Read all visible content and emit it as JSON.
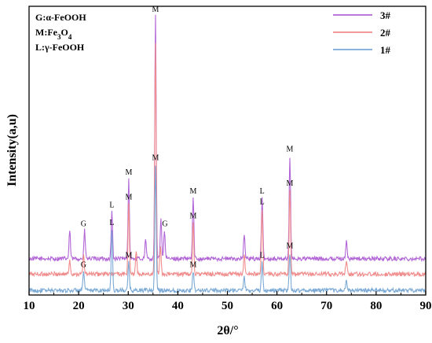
{
  "chart_data": {
    "type": "line",
    "xlabel": "2θ/°",
    "ylabel": "Intensity(a,u)",
    "xlim": [
      10,
      90
    ],
    "x_ticks": [
      "10",
      "20",
      "30",
      "40",
      "50",
      "60",
      "70",
      "80",
      "90"
    ],
    "y_ticks_shown": false,
    "grid": false,
    "legend": {
      "placement": "top-right",
      "entries": [
        {
          "label": "3#",
          "color": "#b265d6"
        },
        {
          "label": "2#",
          "color": "#f08c8c"
        },
        {
          "label": "1#",
          "color": "#7aa9d6"
        }
      ]
    },
    "phase_key": [
      {
        "code": "G:",
        "name": "α-FeOOH"
      },
      {
        "code": "M:",
        "name": "Fe3O4"
      },
      {
        "code": "L:",
        "name": "γ-FeOOH"
      }
    ],
    "series": [
      {
        "name": "3#",
        "color": "#b265d6",
        "baseline": 0.78,
        "peaks": [
          {
            "x": 18.2,
            "h": 0.6
          },
          {
            "x": 21.2,
            "h": 0.6
          },
          {
            "x": 26.7,
            "h": 1.0
          },
          {
            "x": 30.1,
            "h": 1.7
          },
          {
            "x": 33.5,
            "h": 0.4
          },
          {
            "x": 35.5,
            "h": 5.2
          },
          {
            "x": 36.6,
            "h": 0.9
          },
          {
            "x": 37.3,
            "h": 0.6
          },
          {
            "x": 43.1,
            "h": 1.3
          },
          {
            "x": 53.4,
            "h": 0.5
          },
          {
            "x": 57.0,
            "h": 1.3
          },
          {
            "x": 62.6,
            "h": 2.2
          },
          {
            "x": 74.0,
            "h": 0.4
          }
        ],
        "annotations": [
          {
            "x": 21.0,
            "label": "G"
          },
          {
            "x": 26.7,
            "label": "L"
          },
          {
            "x": 30.1,
            "label": "M"
          },
          {
            "x": 35.5,
            "label": "M"
          },
          {
            "x": 37.4,
            "label": "G"
          },
          {
            "x": 43.1,
            "label": "M"
          },
          {
            "x": 57.0,
            "label": "L"
          },
          {
            "x": 62.6,
            "label": "M"
          }
        ]
      },
      {
        "name": "2#",
        "color": "#f08c8c",
        "baseline": 0.45,
        "peaks": [
          {
            "x": 18.2,
            "h": 0.3
          },
          {
            "x": 21.0,
            "h": 0.4
          },
          {
            "x": 30.1,
            "h": 1.5
          },
          {
            "x": 31.6,
            "h": 0.5
          },
          {
            "x": 35.5,
            "h": 5.0
          },
          {
            "x": 36.5,
            "h": 0.6
          },
          {
            "x": 43.1,
            "h": 1.1
          },
          {
            "x": 53.4,
            "h": 0.4
          },
          {
            "x": 57.0,
            "h": 1.4
          },
          {
            "x": 62.6,
            "h": 1.8
          },
          {
            "x": 74.0,
            "h": 0.3
          }
        ],
        "annotations": [
          {
            "x": 30.1,
            "label": "M"
          },
          {
            "x": 43.1,
            "label": "M"
          },
          {
            "x": 57.0,
            "label": "L"
          },
          {
            "x": 62.6,
            "label": "M"
          }
        ]
      },
      {
        "name": "1#",
        "color": "#7aa9d6",
        "baseline": 0.1,
        "peaks": [
          {
            "x": 21.0,
            "h": 0.4
          },
          {
            "x": 26.7,
            "h": 1.3
          },
          {
            "x": 30.1,
            "h": 0.6
          },
          {
            "x": 35.5,
            "h": 2.7
          },
          {
            "x": 43.1,
            "h": 0.4
          },
          {
            "x": 53.4,
            "h": 0.3
          },
          {
            "x": 57.0,
            "h": 0.6
          },
          {
            "x": 62.6,
            "h": 0.8
          },
          {
            "x": 74.0,
            "h": 0.2
          }
        ],
        "annotations": [
          {
            "x": 21.0,
            "label": "G"
          },
          {
            "x": 26.7,
            "label": "L"
          },
          {
            "x": 30.1,
            "label": "M"
          },
          {
            "x": 35.5,
            "label": "M"
          },
          {
            "x": 43.1,
            "label": "M"
          },
          {
            "x": 57.0,
            "label": "L"
          },
          {
            "x": 62.6,
            "label": "M"
          }
        ]
      }
    ]
  }
}
